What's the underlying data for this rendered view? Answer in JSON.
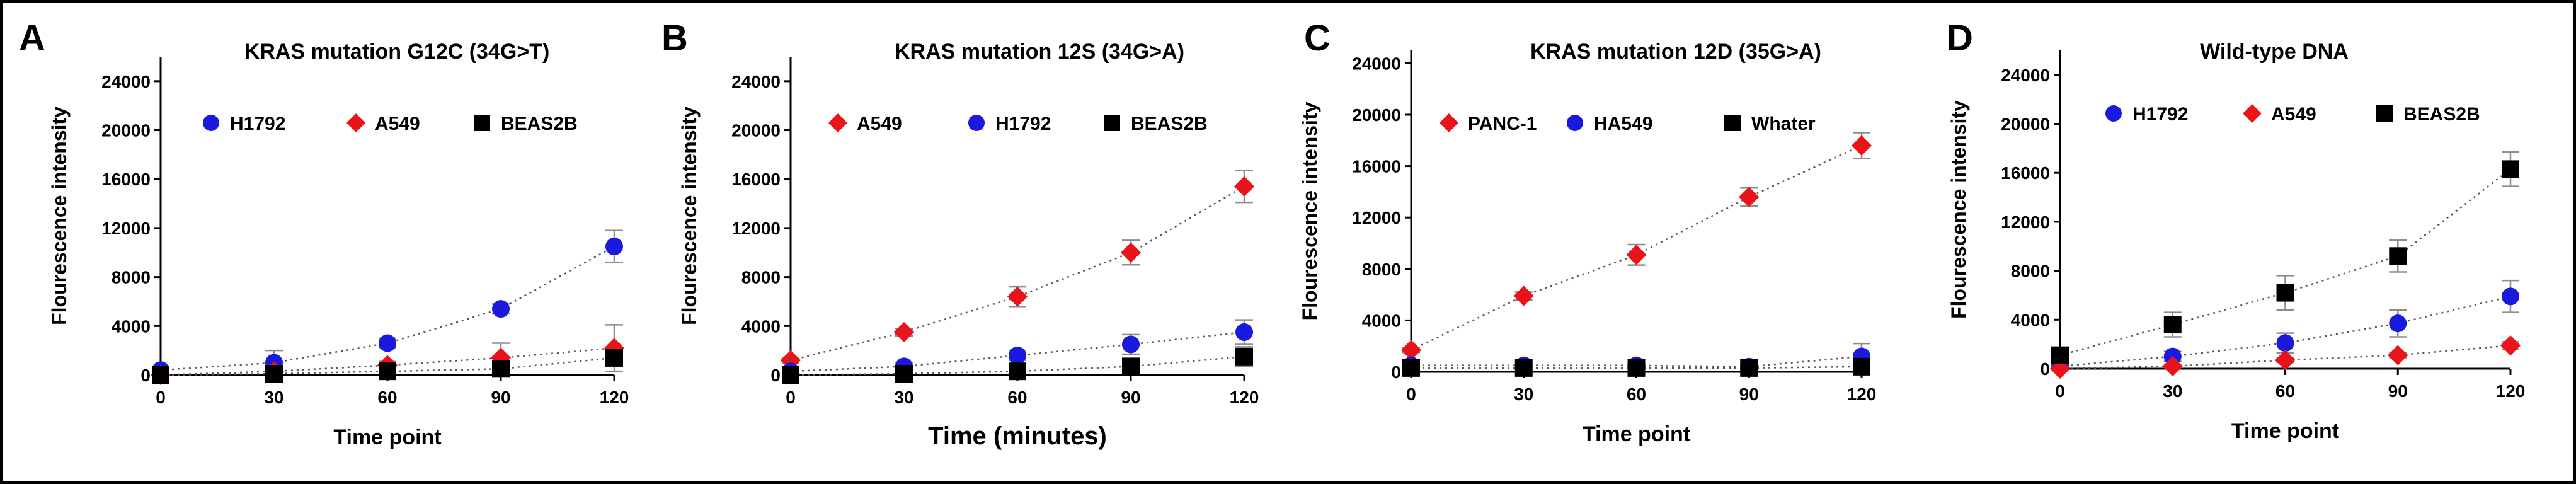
{
  "chart_data": [
    {
      "panel_letter": "A",
      "type": "scatter",
      "title": "KRAS mutation G12C (34G>T)",
      "xlabel": "Time point",
      "ylabel": "Flourescence intensity",
      "x": [
        0,
        30,
        60,
        90,
        120
      ],
      "xlim": [
        0,
        120
      ],
      "ylim": [
        0,
        26000
      ],
      "yticks": [
        0,
        4000,
        8000,
        12000,
        16000,
        20000,
        24000
      ],
      "ytick_labels": [
        "0",
        "4000",
        "8000",
        "12000",
        "16000",
        "20000",
        "24000"
      ],
      "xticks": [
        0,
        30,
        60,
        90,
        120
      ],
      "xtick_labels": [
        "0",
        "30",
        "60",
        "90",
        "120"
      ],
      "legend_position": "upper-left",
      "series": [
        {
          "name": "H1792",
          "marker": "circle",
          "color": "#1a1adf",
          "values": [
            400,
            1000,
            2600,
            5400,
            10500
          ],
          "errors": [
            300,
            1000,
            400,
            400,
            1300
          ]
        },
        {
          "name": "A549",
          "marker": "diamond",
          "color": "#e8141a",
          "values": [
            0,
            300,
            800,
            1400,
            2200
          ],
          "errors": [
            100,
            300,
            300,
            1200,
            1900
          ]
        },
        {
          "name": "BEAS2B",
          "marker": "square",
          "color": "#000000",
          "values": [
            0,
            100,
            300,
            500,
            1400
          ],
          "errors": [
            100,
            100,
            100,
            300,
            700
          ]
        }
      ]
    },
    {
      "panel_letter": "B",
      "type": "scatter",
      "title": "KRAS mutation 12S (34G>A)",
      "xlabel": "Time (minutes)",
      "ylabel": "Flourescence intensity",
      "x": [
        0,
        30,
        60,
        90,
        120
      ],
      "xlim": [
        0,
        120
      ],
      "ylim": [
        0,
        26000
      ],
      "yticks": [
        0,
        4000,
        8000,
        12000,
        16000,
        20000,
        24000
      ],
      "ytick_labels": [
        "0",
        "4000",
        "8000",
        "12000",
        "16000",
        "20000",
        "24000"
      ],
      "xticks": [
        0,
        30,
        60,
        90,
        120
      ],
      "xtick_labels": [
        "0",
        "30",
        "60",
        "90",
        "120"
      ],
      "legend_position": "upper-left",
      "series": [
        {
          "name": "A549",
          "marker": "diamond",
          "color": "#e8141a",
          "values": [
            1200,
            3500,
            6400,
            10000,
            15400
          ],
          "errors": [
            200,
            300,
            800,
            1000,
            1300
          ]
        },
        {
          "name": "H1792",
          "marker": "circle",
          "color": "#1a1adf",
          "values": [
            300,
            700,
            1600,
            2500,
            3500
          ],
          "errors": [
            100,
            300,
            400,
            800,
            1000
          ]
        },
        {
          "name": "BEAS2B",
          "marker": "square",
          "color": "#000000",
          "values": [
            0,
            100,
            300,
            700,
            1500
          ],
          "errors": [
            100,
            100,
            300,
            400,
            800
          ]
        }
      ]
    },
    {
      "panel_letter": "C",
      "type": "scatter",
      "title": "KRAS mutation 12D (35G>A)",
      "xlabel": "Time point",
      "ylabel": "Flourescence intensity",
      "x": [
        0,
        30,
        60,
        90,
        120
      ],
      "xlim": [
        0,
        120
      ],
      "ylim": [
        0,
        25000
      ],
      "yticks": [
        0,
        4000,
        8000,
        12000,
        16000,
        20000,
        24000
      ],
      "ytick_labels": [
        "0",
        "4000",
        "8000",
        "12000",
        "16000",
        "20000",
        "24000"
      ],
      "xticks": [
        0,
        30,
        60,
        90,
        120
      ],
      "xtick_labels": [
        "0",
        "30",
        "60",
        "90",
        "120"
      ],
      "legend_position": "upper-left",
      "series": [
        {
          "name": "PANC-1",
          "marker": "diamond",
          "color": "#e8141a",
          "values": [
            1700,
            5900,
            9100,
            13600,
            17600
          ],
          "errors": [
            200,
            300,
            800,
            700,
            1000
          ]
        },
        {
          "name": "HA549",
          "marker": "circle",
          "color": "#1a1adf",
          "values": [
            500,
            500,
            500,
            400,
            1200
          ],
          "errors": [
            100,
            100,
            100,
            100,
            1000
          ]
        },
        {
          "name": "Whater",
          "marker": "square",
          "color": "#000000",
          "values": [
            300,
            300,
            300,
            300,
            400
          ],
          "errors": [
            100,
            100,
            100,
            100,
            100
          ]
        }
      ]
    },
    {
      "panel_letter": "D",
      "type": "scatter",
      "title": "Wild-type DNA",
      "xlabel": "Time point",
      "ylabel": "Flourescence intensity",
      "x": [
        0,
        30,
        60,
        90,
        120
      ],
      "xlim": [
        0,
        120
      ],
      "ylim": [
        0,
        26000
      ],
      "yticks": [
        0,
        4000,
        8000,
        12000,
        16000,
        20000,
        24000
      ],
      "ytick_labels": [
        "0",
        "4000",
        "8000",
        "12000",
        "16000",
        "20000",
        "24000"
      ],
      "xticks": [
        0,
        30,
        60,
        90,
        120
      ],
      "xtick_labels": [
        "0",
        "30",
        "60",
        "90",
        "120"
      ],
      "legend_position": "upper-left",
      "series": [
        {
          "name": "H1792",
          "marker": "circle",
          "color": "#1a1adf",
          "values": [
            200,
            1000,
            2100,
            3700,
            5900
          ],
          "errors": [
            100,
            400,
            800,
            1100,
            1300
          ]
        },
        {
          "name": "A549",
          "marker": "diamond",
          "color": "#e8141a",
          "values": [
            0,
            200,
            700,
            1100,
            1900
          ],
          "errors": [
            100,
            100,
            200,
            200,
            300
          ]
        },
        {
          "name": "BEAS2B",
          "marker": "square",
          "color": "#000000",
          "values": [
            1100,
            3600,
            6200,
            9200,
            16300
          ],
          "errors": [
            300,
            1000,
            1400,
            1300,
            1400
          ]
        }
      ]
    }
  ],
  "colors": {
    "frame": "#000000",
    "axis": "#000000",
    "trend_line": "#555555",
    "error_bar": "#8c8c8c",
    "background": "#ffffff"
  }
}
